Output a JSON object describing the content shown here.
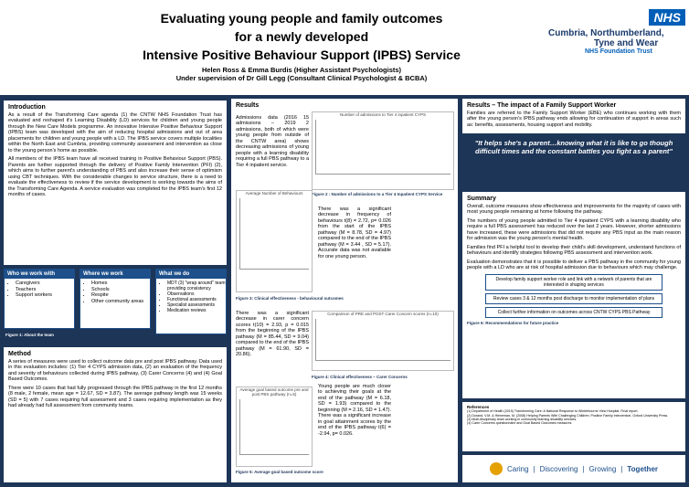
{
  "header": {
    "title_lines": [
      "Evaluating young people and family outcomes",
      "for a newly developed",
      "Intensive Positive Behaviour Support (IPBS) Service"
    ],
    "authors": "Helen Ross & Emma Burdis (Higher Assistant Psychologists)",
    "supervision": "Under supervision of Dr Gill Legg (Consultant Clinical Psychologist & BCBA)",
    "logo": {
      "badge": "NHS",
      "org_lines": [
        "Cumbria, Northumberland,",
        "Tyne and Wear"
      ],
      "trust": "NHS Foundation Trust"
    }
  },
  "introduction": {
    "heading": "Introduction",
    "paragraphs": [
      "As a result of the Transforming Care agenda (1) the CNTW NHS Foundation Trust has evaluated and reshaped it's Learning Disability (LD) services for children and young people through the New Care Models programme. An innovative Intensive Positive Behaviour Support (IPBS) team was developed with the aim of reducing hospital admissions and out of area placements for children and young people with a LD. The IPBS service covers multiple localities within the North East and Cumbria, providing community assessment and intervention as close to the young person's home as possible.",
      "All members of the IPBS team have all received training in Positive Behaviour Support (PBS). Parents are further supported through the delivery of Positive Family Intervention (PFI) (2), which aims to further parent's understanding of PBS and also increase their sense of optimism using CBT techniques. With the considerable changes to service structure, there is a need to evaluate the effectiveness to review if the service development is working towards the aims of the Transforming Care Agenda. A service evaluation was completed for the IPBS team's first 12 months of cases."
    ]
  },
  "team": {
    "boxes": [
      {
        "heading": "Who we work with",
        "items": [
          "Caregivers",
          "Teachers",
          "Support workers"
        ]
      },
      {
        "heading": "Where we work",
        "items": [
          "Homes",
          "Schools",
          "Respite",
          "Other community areas"
        ]
      },
      {
        "heading": "What we do",
        "items": [
          "MDT (3) \"wrap around\" team providing consistency",
          "Observations",
          "Functional assessments",
          "Specialist assessments",
          "Medication reviews"
        ]
      }
    ],
    "caption": "Figure 1: About the team"
  },
  "method": {
    "heading": "Method",
    "paragraphs": [
      "A series of measures were used to collect outcome data pre and post IPBS pathway. Data used in this evaluation includes: (1) Tier 4 CYPS admission data, (2) an evaluation of the frequency and severity of behaviours collected during IPBS pathway, (3) Carer Concerns (4) and (4) Goal Based Outcomes.",
      "There were 10 cases that had fully progressed through the IPBS pathway in the first 12 months (8 male, 2 female, mean age = 12.67, SD = 3.87). The average pathway length was 15 weeks (SD = 5) with 7 cases requiring full assessment and 3 cases requiring implementation as they had already had full assessment from community teams."
    ]
  },
  "results": {
    "heading": "Results",
    "blocks": [
      {
        "text": "Admissions data (2016 15 admissions – 2019 2 admissions, both of which were young people from outside of the CNTW area) shows decreasing admissions of young people with a learning disability requiring a full PBS pathway to a Tier 4 inpatient service.",
        "chart_title": "Number of admissions to Tier 4 inpatient CYPS",
        "caption": "Figure 2 : Number of admissions to a Tier 4 Inpatient CYPS Service"
      },
      {
        "text": "There was a significant decrease in frequency of behaviours t(8) = 2.72, p= 0.026 from the start of the IPBS pathway (M = 8.78, SD = 4.97) compared to the end of the IPBS pathway (M = 3.44 , SD = 5.17). Accurate data was not available for one young person.",
        "chart_title": "Average Number of Behaviours",
        "caption": "Figure 3: Clinical effectiveness - behavioural outcomes"
      },
      {
        "text": "There was a significant decrease in carer concern scores t(10) = 2.93, p = 0.015 from the beginning of the IPBS pathway (M = 85.44, SD = 9.04) compared to the end of the IPBS pathway (M = 61.90, SD = 20.86).",
        "chart_title": "Comparison of PRE and POST Carer Concern scores (n=10)",
        "caption": "Figure 4: Clinical effectiveness – Carer Concerns"
      },
      {
        "text": "Young people are much closer to achieving their goals at the end of the pathway (M = 6.18, SD = 1.93) compared to the beginning (M = 2.16, SD = 1.47). There was a significant increase in goal attainment scores by the end of the IPBS pathway t(6) = -2.94, p= 0.026.",
        "chart_title": "Average goal based outcome pre and post PBS pathway (n=5)",
        "caption": "Figure 5: Average goal based outcome score"
      }
    ]
  },
  "family": {
    "heading": "Results – The impact of a Family Support Worker",
    "text": "Families are referred to the Family Support Worker (EBE) who continues working with them after the young person's IPBS pathway ends allowing for continuation of support in areas such as: benefits, assessments, housing support and mobility.",
    "quote": "\"It helps she's a parent…knowing what it is like to go though difficult times and the constant battles you fight as a parent\""
  },
  "summary": {
    "heading": "Summary",
    "paragraphs": [
      "Overall, outcome measures show effectiveness and improvements for the majority of cases with most young people remaining at home following the pathway.",
      "The numbers of young people admitted to Tier 4 inpatient CYPS with a learning disability who require a full PBS assessment has reduced over the last 2 years. However, shorter admissions have increased, these were admissions that did not require any PBS input as the main reason for admission was the young person's mental health.",
      "Families find PFI a helpful tool to develop their child's skill development, understand functions of behaviours and identify strategies following PBS assessment and intervention work.",
      "Evaluation demonstrates that it is possible to deliver a PBS pathway in the community for young people with a LD who are at risk of hospital admission due to behaviours which may challenge."
    ],
    "future": [
      "Develop family support worker role and link with a network of parents that are interested in shaping services",
      "Review cases 3 & 12 months post discharge to monitor implementation of plans",
      "Collect further information on outcomes across CNTW CYPS PBS Pathway"
    ],
    "future_caption": "Figure 6: Recommendations for future practice"
  },
  "references": {
    "heading": "References",
    "items": [
      "(1) Department of Health (2015) Transforming Care: A National Response to Winterbourne View Hospital. Final report.",
      "(2) Durand, V.M. & Hieneman, M. (2008) Helping Parents With Challenging Children: Positive Family Intervention. Oxford University Press.",
      "(3) Multi-disciplinary team working in community learning disability services.",
      "(4) Carer Concerns questionnaire and Goal Based Outcomes measures."
    ]
  },
  "footer": {
    "words": [
      "Caring",
      "Discovering",
      "Growing",
      "Together"
    ]
  }
}
